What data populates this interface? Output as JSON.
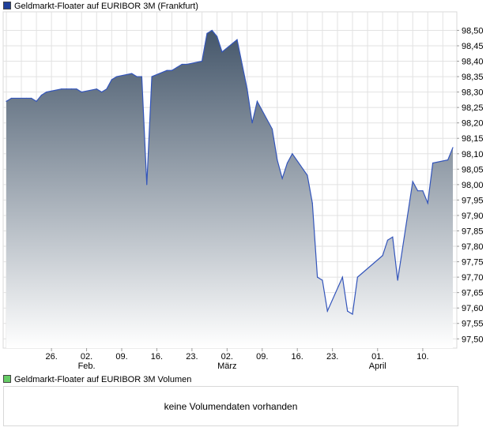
{
  "legend": {
    "price_label": "Geldmarkt-Floater auf EURIBOR 3M (Frankfurt)",
    "volume_label": "Geldmarkt-Floater auf EURIBOR 3M Volumen",
    "price_color": "#1f3f99",
    "volume_color": "#66cc66"
  },
  "volume": {
    "message": "keine Volumendaten vorhanden"
  },
  "chart_data": {
    "type": "area",
    "series": [
      {
        "name": "Geldmarkt-Floater auf EURIBOR 3M (Frankfurt)",
        "x": [
          "2013-01-17",
          "2013-01-18",
          "2013-01-21",
          "2013-01-22",
          "2013-01-23",
          "2013-01-24",
          "2013-01-25",
          "2013-01-28",
          "2013-01-29",
          "2013-01-30",
          "2013-01-31",
          "2013-02-01",
          "2013-02-04",
          "2013-02-05",
          "2013-02-06",
          "2013-02-07",
          "2013-02-08",
          "2013-02-11",
          "2013-02-12",
          "2013-02-13",
          "2013-02-14",
          "2013-02-15",
          "2013-02-18",
          "2013-02-19",
          "2013-02-20",
          "2013-02-21",
          "2013-02-22",
          "2013-02-25",
          "2013-02-26",
          "2013-02-27",
          "2013-02-28",
          "2013-03-01",
          "2013-03-04",
          "2013-03-05",
          "2013-03-06",
          "2013-03-07",
          "2013-03-08",
          "2013-03-11",
          "2013-03-12",
          "2013-03-13",
          "2013-03-14",
          "2013-03-15",
          "2013-03-18",
          "2013-03-19",
          "2013-03-20",
          "2013-03-21",
          "2013-03-22",
          "2013-03-25",
          "2013-03-26",
          "2013-03-27",
          "2013-03-28",
          "2013-04-02",
          "2013-04-03",
          "2013-04-04",
          "2013-04-05",
          "2013-04-08",
          "2013-04-09",
          "2013-04-10",
          "2013-04-11",
          "2013-04-12",
          "2013-04-15",
          "2013-04-16"
        ],
        "values": [
          98.27,
          98.28,
          98.28,
          98.28,
          98.27,
          98.29,
          98.3,
          98.31,
          98.31,
          98.31,
          98.31,
          98.3,
          98.31,
          98.3,
          98.31,
          98.34,
          98.35,
          98.36,
          98.35,
          98.35,
          98.0,
          98.35,
          98.37,
          98.37,
          98.38,
          98.39,
          98.39,
          98.4,
          98.49,
          98.5,
          98.48,
          98.43,
          98.47,
          98.39,
          98.31,
          98.2,
          98.27,
          98.18,
          98.08,
          98.02,
          98.07,
          98.1,
          98.03,
          97.94,
          97.7,
          97.69,
          97.59,
          97.7,
          97.59,
          97.58,
          97.7,
          97.77,
          97.82,
          97.83,
          97.69,
          98.01,
          97.98,
          97.98,
          97.94,
          98.07,
          98.08,
          98.12
        ]
      }
    ],
    "ylim": [
      97.47,
      98.56
    ],
    "y_ticks": [
      "97,50",
      "97,55",
      "97,60",
      "97,65",
      "97,70",
      "97,75",
      "97,80",
      "97,85",
      "97,90",
      "97,95",
      "98,00",
      "98,05",
      "98,10",
      "98,15",
      "98,20",
      "98,25",
      "98,30",
      "98,35",
      "98,40",
      "98,45",
      "98,50"
    ],
    "x_ticks": [
      {
        "date": "2013-01-26",
        "label": "26."
      },
      {
        "date": "2013-02-02",
        "label": "02.",
        "sublabel": "Feb."
      },
      {
        "date": "2013-02-09",
        "label": "09."
      },
      {
        "date": "2013-02-16",
        "label": "16."
      },
      {
        "date": "2013-02-23",
        "label": "23."
      },
      {
        "date": "2013-03-02",
        "label": "02.",
        "sublabel": "März"
      },
      {
        "date": "2013-03-09",
        "label": "09."
      },
      {
        "date": "2013-03-16",
        "label": "16."
      },
      {
        "date": "2013-03-23",
        "label": "23."
      },
      {
        "date": "2013-04-01",
        "label": "01.",
        "sublabel": "April"
      },
      {
        "date": "2013-04-10",
        "label": "10."
      }
    ],
    "grid": true,
    "y_axis_side": "right",
    "line_color": "#3355bb",
    "fill_top_color": "#44566a",
    "fill_bottom_color": "#ffffff"
  }
}
